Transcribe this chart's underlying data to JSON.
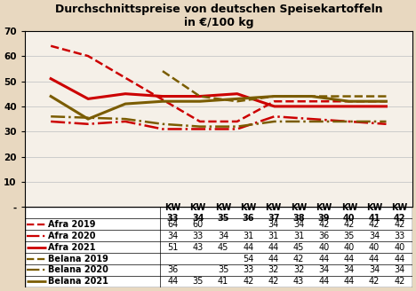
{
  "title": "Durchschnittspreise von deutschen Speisekartoffeln\nin €/100 kg",
  "x_labels": [
    "KW\n33",
    "KW\n34",
    "KW\n35",
    "KW\n36",
    "KW\n37",
    "KW\n38",
    "KW\n39",
    "KW\n40",
    "KW\n41",
    "KW\n42"
  ],
  "x_positions": [
    33,
    34,
    35,
    36,
    37,
    38,
    39,
    40,
    41,
    42
  ],
  "ylim": [
    0,
    70
  ],
  "yticks": [
    0,
    10,
    20,
    30,
    40,
    50,
    60,
    70
  ],
  "ytick_labels": [
    "-",
    "10",
    "20",
    "30",
    "40",
    "50",
    "60",
    "70"
  ],
  "series": [
    {
      "label": "Afra 2019",
      "color": "#cc0000",
      "linestyle": "--",
      "linewidth": 1.8,
      "x": [
        33,
        34,
        37,
        38,
        39,
        40,
        41,
        42
      ],
      "y": [
        64,
        60,
        34,
        34,
        42,
        42,
        42,
        42
      ]
    },
    {
      "label": "Afra 2020",
      "color": "#cc0000",
      "linestyle": "-.",
      "linewidth": 1.8,
      "x": [
        33,
        34,
        35,
        36,
        37,
        38,
        39,
        40,
        41,
        42
      ],
      "y": [
        34,
        33,
        34,
        31,
        31,
        31,
        36,
        35,
        34,
        33
      ]
    },
    {
      "label": "Afra 2021",
      "color": "#cc0000",
      "linestyle": "-",
      "linewidth": 2.2,
      "x": [
        33,
        34,
        35,
        36,
        37,
        38,
        39,
        40,
        41,
        42
      ],
      "y": [
        51,
        43,
        45,
        44,
        44,
        45,
        40,
        40,
        40,
        40
      ]
    },
    {
      "label": "Belana 2019",
      "color": "#7a5c00",
      "linestyle": "--",
      "linewidth": 1.8,
      "x": [
        36,
        37,
        38,
        39,
        40,
        41,
        42
      ],
      "y": [
        54,
        44,
        42,
        44,
        44,
        44,
        44
      ]
    },
    {
      "label": "Belana 2020",
      "color": "#7a5c00",
      "linestyle": "-.",
      "linewidth": 1.8,
      "x": [
        33,
        35,
        36,
        37,
        38,
        39,
        40,
        41,
        42
      ],
      "y": [
        36,
        35,
        33,
        32,
        32,
        34,
        34,
        34,
        34
      ]
    },
    {
      "label": "Belana 2021",
      "color": "#7a5c00",
      "linestyle": "-",
      "linewidth": 2.2,
      "x": [
        33,
        34,
        35,
        36,
        37,
        38,
        39,
        40,
        41,
        42
      ],
      "y": [
        44,
        35,
        41,
        42,
        42,
        43,
        44,
        44,
        42,
        42
      ]
    }
  ],
  "table_data": {
    "Afra 2019": [
      "64",
      "60",
      "",
      "",
      "34",
      "34",
      "42",
      "42",
      "42",
      "42"
    ],
    "Afra 2020": [
      "34",
      "33",
      "34",
      "31",
      "31",
      "31",
      "36",
      "35",
      "34",
      "33"
    ],
    "Afra 2021": [
      "51",
      "43",
      "45",
      "44",
      "44",
      "45",
      "40",
      "40",
      "40",
      "40"
    ],
    "Belana 2019": [
      "",
      "",
      "",
      "54",
      "44",
      "42",
      "44",
      "44",
      "44",
      "44"
    ],
    "Belana 2020": [
      "36",
      "",
      "35",
      "33",
      "32",
      "32",
      "34",
      "34",
      "34",
      "34"
    ],
    "Belana 2021": [
      "44",
      "35",
      "41",
      "42",
      "42",
      "43",
      "44",
      "44",
      "42",
      "42"
    ]
  },
  "legend_line_styles": [
    {
      "label": "Afra 2019",
      "color": "#cc0000",
      "linestyle": "--",
      "linewidth": 1.8
    },
    {
      "label": "Afra 2020",
      "color": "#cc0000",
      "linestyle": "-.",
      "linewidth": 1.8
    },
    {
      "label": "Afra 2021",
      "color": "#cc0000",
      "linestyle": "-",
      "linewidth": 2.2
    },
    {
      "label": "Belana 2019",
      "color": "#7a5c00",
      "linestyle": "--",
      "linewidth": 1.8
    },
    {
      "label": "Belana 2020",
      "color": "#7a5c00",
      "linestyle": "-.",
      "linewidth": 1.8
    },
    {
      "label": "Belana 2021",
      "color": "#7a5c00",
      "linestyle": "-",
      "linewidth": 2.2
    }
  ],
  "bg_color": "#e8d8c0",
  "plot_bg_color": "#f5f0e8",
  "grid_color": "#cccccc",
  "title_fontsize": 9,
  "tick_fontsize": 7.5,
  "table_fontsize": 7,
  "legend_fontsize": 7
}
